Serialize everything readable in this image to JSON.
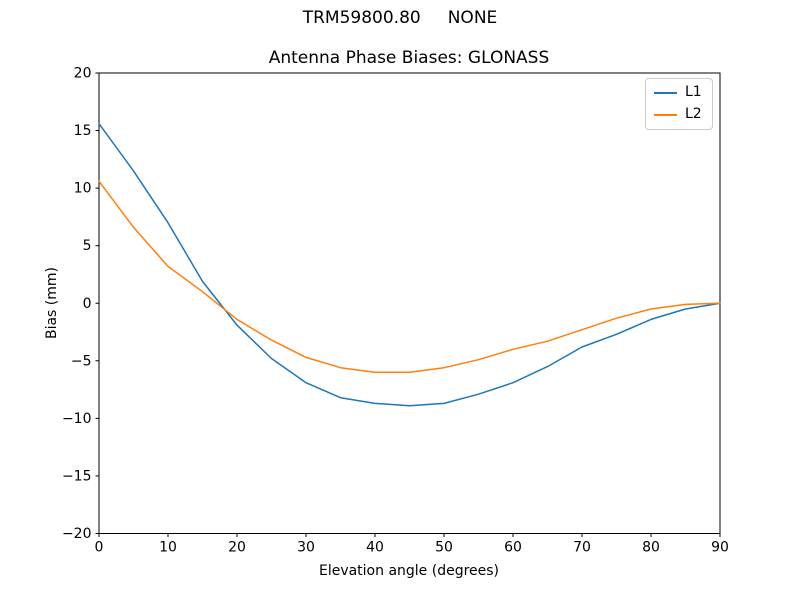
{
  "suptitle": "TRM59800.80     NONE",
  "chart_data": {
    "type": "line",
    "title": "Antenna Phase Biases: GLONASS",
    "xlabel": "Elevation angle (degrees)",
    "ylabel": "Bias (mm)",
    "xlim": [
      0,
      90
    ],
    "ylim": [
      -20,
      20
    ],
    "grid": false,
    "legend_position": "upper right",
    "x_ticks": [
      0,
      10,
      20,
      30,
      40,
      50,
      60,
      70,
      80,
      90
    ],
    "x_tick_labels": [
      "0",
      "10",
      "20",
      "30",
      "40",
      "50",
      "60",
      "70",
      "80",
      "90"
    ],
    "y_ticks": [
      -20,
      -15,
      -10,
      -5,
      0,
      5,
      10,
      15,
      20
    ],
    "y_tick_labels": [
      "−20",
      "−15",
      "−10",
      "−5",
      "0",
      "5",
      "10",
      "15",
      "20"
    ],
    "x": [
      0,
      5,
      10,
      15,
      20,
      25,
      30,
      35,
      40,
      45,
      50,
      55,
      60,
      65,
      70,
      75,
      80,
      85,
      90
    ],
    "series": [
      {
        "name": "L1",
        "color": "#1f77b4",
        "values": [
          15.6,
          11.5,
          7.0,
          1.9,
          -1.9,
          -4.8,
          -6.9,
          -8.2,
          -8.7,
          -8.9,
          -8.7,
          -7.9,
          -6.9,
          -5.5,
          -3.8,
          -2.7,
          -1.4,
          -0.5,
          0.0
        ]
      },
      {
        "name": "L2",
        "color": "#ff7f0e",
        "values": [
          10.6,
          6.6,
          3.2,
          1.0,
          -1.4,
          -3.2,
          -4.7,
          -5.6,
          -6.0,
          -6.0,
          -5.6,
          -4.9,
          -4.0,
          -3.3,
          -2.3,
          -1.3,
          -0.5,
          -0.1,
          0.0
        ]
      }
    ]
  }
}
